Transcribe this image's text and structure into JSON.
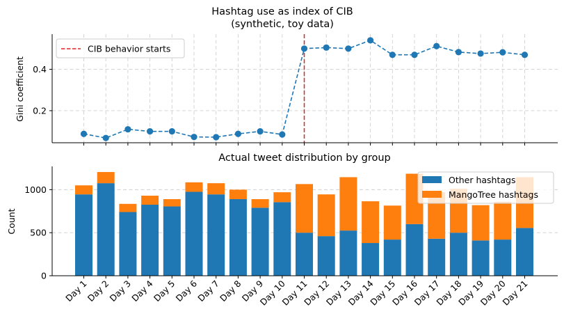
{
  "chart_data": [
    {
      "type": "line",
      "title": "Hashtag use as index of CIB",
      "subtitle": "(synthetic, toy data)",
      "xlabel": "",
      "ylabel": "Gini coefficient",
      "ylim": [
        0.045,
        0.57
      ],
      "yticks": [
        "0.2",
        "0.4"
      ],
      "ytick_values": [
        0.2,
        0.4
      ],
      "grid": true,
      "legend_position": "upper-left",
      "series": [
        {
          "name": "",
          "color": "#1f77b4",
          "style": "dashed-with-circle-markers",
          "values": [
            0.088,
            0.068,
            0.11,
            0.1,
            0.1,
            0.073,
            0.072,
            0.088,
            0.1,
            0.085,
            0.5,
            0.505,
            0.5,
            0.54,
            0.47,
            0.47,
            0.512,
            0.483,
            0.476,
            0.482,
            0.47
          ]
        }
      ],
      "vline": {
        "at_category": "Day 11",
        "label": "CIB behavior starts",
        "color": "#d62728"
      }
    },
    {
      "type": "bar",
      "stacked": true,
      "title": "Actual tweet distribution by group",
      "xlabel": "",
      "ylabel": "Count",
      "ylim": [
        0,
        1270
      ],
      "yticks": [
        "0",
        "500",
        "1000"
      ],
      "ytick_values": [
        0,
        500,
        1000
      ],
      "grid": true,
      "legend_position": "upper-right",
      "categories": [
        "Day 1",
        "Day 2",
        "Day 3",
        "Day 4",
        "Day 5",
        "Day 6",
        "Day 7",
        "Day 8",
        "Day 9",
        "Day 10",
        "Day 11",
        "Day 12",
        "Day 13",
        "Day 14",
        "Day 15",
        "Day 16",
        "Day 17",
        "Day 18",
        "Day 19",
        "Day 20",
        "Day 21"
      ],
      "series": [
        {
          "name": "Other hashtags",
          "color": "#1f77b4",
          "values": [
            945,
            1075,
            740,
            825,
            805,
            975,
            945,
            890,
            790,
            855,
            500,
            460,
            525,
            380,
            420,
            600,
            430,
            500,
            410,
            420,
            555
          ]
        },
        {
          "name": "MangoTree hashtags",
          "color": "#ff7f0e",
          "values": [
            105,
            130,
            95,
            105,
            85,
            110,
            130,
            110,
            100,
            115,
            565,
            485,
            620,
            485,
            395,
            585,
            540,
            510,
            410,
            440,
            590
          ]
        }
      ]
    }
  ]
}
